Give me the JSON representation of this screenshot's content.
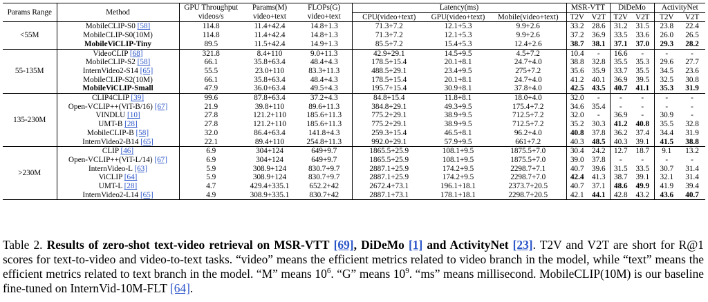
{
  "table": {
    "headers": {
      "params_range": "Params Range",
      "method": "Method",
      "gpu_throughput_l1": "GPU Throughput",
      "gpu_throughput_l2": "videos/s",
      "params_l1": "Params(M)",
      "params_l2": "video+text",
      "flops_l1": "FLOPs(G)",
      "flops_l2": "video+text",
      "latency": "Latency(ms)",
      "cpu": "CPU(video+text)",
      "gpu": "GPU(video+text)",
      "mobile": "Mobile(video+text)",
      "msrvtt": "MSR-VTT",
      "didemo": "DiDeMo",
      "activitynet": "ActivityNet",
      "t2v": "T2V",
      "v2t": "V2T"
    },
    "groups": [
      {
        "range": "<55M",
        "rows": [
          {
            "method": "MobileCLIP-S0",
            "ref": "[58]",
            "bold": false,
            "throughput": "114.8",
            "params": "11.4+42.4",
            "flops": "14.8+1.3",
            "cpu": "71.3+7.2",
            "gpu": "12.1+5.3",
            "mobile": "9.9+2.6",
            "msr_t2v": "33.2",
            "msr_v2t": "28.6",
            "did_t2v": "31.2",
            "did_v2t": "31.5",
            "act_t2v": "23.8",
            "act_v2t": "22.4",
            "bold_cells": []
          },
          {
            "method": "MobileCLIP-S0(10M)",
            "ref": "",
            "bold": false,
            "throughput": "114.8",
            "params": "11.4+42.4",
            "flops": "14.8+1.3",
            "cpu": "71.3+7.2",
            "gpu": "12.1+5.3",
            "mobile": "9.9+2.6",
            "msr_t2v": "37.2",
            "msr_v2t": "36.9",
            "did_t2v": "33.5",
            "did_v2t": "33.6",
            "act_t2v": "26.0",
            "act_v2t": "26.5",
            "bold_cells": []
          },
          {
            "method": "MobileViCLIP-Tiny",
            "ref": "",
            "bold": true,
            "throughput": "89.5",
            "params": "11.5+42.4",
            "flops": "14.9+1.3",
            "cpu": "85.5+7.2",
            "gpu": "15.4+5.3",
            "mobile": "12.4+2.6",
            "msr_t2v": "38.7",
            "msr_v2t": "38.1",
            "did_t2v": "37.1",
            "did_v2t": "37.0",
            "act_t2v": "29.3",
            "act_v2t": "28.2",
            "bold_cells": [
              "msr_t2v",
              "msr_v2t",
              "did_t2v",
              "did_v2t",
              "act_t2v",
              "act_v2t"
            ]
          }
        ]
      },
      {
        "range": "55-135M",
        "rows": [
          {
            "method": "VideoCLIP",
            "ref": "[68]",
            "bold": false,
            "throughput": "321.8",
            "params": "8.4+110",
            "flops": "9.0+11.3",
            "cpu": "42.9+29.1",
            "gpu": "14.5+9.5",
            "mobile": "4.5+7.2",
            "msr_t2v": "10.4",
            "msr_v2t": "-",
            "did_t2v": "16.6",
            "did_v2t": "-",
            "act_t2v": "-",
            "act_v2t": "-",
            "bold_cells": []
          },
          {
            "method": "MobileCLIP-S2",
            "ref": "[58]",
            "bold": false,
            "throughput": "66.1",
            "params": "35.8+63.4",
            "flops": "48.4+4.3",
            "cpu": "178.5+15.4",
            "gpu": "20.1+8.1",
            "mobile": "24.7+4.0",
            "msr_t2v": "38.8",
            "msr_v2t": "32.8",
            "did_t2v": "35.5",
            "did_v2t": "35.3",
            "act_t2v": "29.6",
            "act_v2t": "27.7",
            "bold_cells": []
          },
          {
            "method": "InternVideo2-S14",
            "ref": "[65]",
            "bold": false,
            "throughput": "55.5",
            "params": "23.0+110",
            "flops": "83.3+11.3",
            "cpu": "488.5+29.1",
            "gpu": "23.4+9.5",
            "mobile": "275+7.2",
            "msr_t2v": "35.6",
            "msr_v2t": "35.9",
            "did_t2v": "33.7",
            "did_v2t": "35.5",
            "act_t2v": "34.5",
            "act_v2t": "23.6",
            "bold_cells": []
          },
          {
            "method": "MobileCLIP-S2(10M)",
            "ref": "",
            "bold": false,
            "throughput": "66.1",
            "params": "35.8+63.4",
            "flops": "48.4+4.3",
            "cpu": "178.5+15.4",
            "gpu": "20.1+8.1",
            "mobile": "24.7+4.0",
            "msr_t2v": "41.2",
            "msr_v2t": "40.1",
            "did_t2v": "36.9",
            "did_v2t": "39.5",
            "act_t2v": "32.5",
            "act_v2t": "30.8",
            "bold_cells": []
          },
          {
            "method": "MobileViCLIP-Small",
            "ref": "",
            "bold": true,
            "throughput": "47.9",
            "params": "36.0+63.4",
            "flops": "49.5+4.3",
            "cpu": "195.7+15.4",
            "gpu": "30.9+8.1",
            "mobile": "37.8+4.0",
            "msr_t2v": "42.5",
            "msr_v2t": "43.5",
            "did_t2v": "40.7",
            "did_v2t": "41.1",
            "act_t2v": "35.3",
            "act_v2t": "31.9",
            "bold_cells": [
              "msr_t2v",
              "msr_v2t",
              "did_t2v",
              "did_v2t",
              "act_t2v",
              "act_v2t"
            ]
          }
        ]
      },
      {
        "range": "135-230M",
        "rows": [
          {
            "method": "CLIP4CLIP",
            "ref": "[39]",
            "bold": false,
            "throughput": "99.6",
            "params": "87.8+63.4",
            "flops": "37.2+4.3",
            "cpu": "84.8+15.4",
            "gpu": "11.8+8.1",
            "mobile": "18.0+4.0",
            "msr_t2v": "32.0",
            "msr_v2t": "-",
            "did_t2v": "-",
            "did_v2t": "-",
            "act_t2v": "-",
            "act_v2t": "-",
            "bold_cells": []
          },
          {
            "method": "Open-VCLIP++(ViT-B/16)",
            "ref": "[67]",
            "bold": false,
            "throughput": "21.9",
            "params": "39.8+110",
            "flops": "89.6+11.3",
            "cpu": "384.8+29.1",
            "gpu": "49.3+9.5",
            "mobile": "175.4+7.2",
            "msr_t2v": "34.6",
            "msr_v2t": "35.4",
            "did_t2v": "-",
            "did_v2t": "-",
            "act_t2v": "-",
            "act_v2t": "-",
            "bold_cells": []
          },
          {
            "method": "VINDLU",
            "ref": "[10]",
            "bold": false,
            "throughput": "27.8",
            "params": "121.2+110",
            "flops": "185.6+11.3",
            "cpu": "775.2+29.1",
            "gpu": "38.9+9.5",
            "mobile": "712.5+7.2",
            "msr_t2v": "32.0",
            "msr_v2t": "-",
            "did_t2v": "36.9",
            "did_v2t": "-",
            "act_t2v": "30.9",
            "act_v2t": "-",
            "bold_cells": []
          },
          {
            "method": "UMT-B",
            "ref": "[28]",
            "bold": false,
            "throughput": "27.8",
            "params": "121.2+110",
            "flops": "185.6+11.3",
            "cpu": "775.2+29.1",
            "gpu": "38.9+9.5",
            "mobile": "712.5+7.2",
            "msr_t2v": "35.2",
            "msr_v2t": "30.3",
            "did_t2v": "41.2",
            "did_v2t": "40.8",
            "act_t2v": "35.5",
            "act_v2t": "32.8",
            "bold_cells": [
              "did_t2v",
              "did_v2t"
            ]
          },
          {
            "method": "MobileCLIP-B",
            "ref": "[58]",
            "bold": false,
            "throughput": "32.0",
            "params": "86.4+63.4",
            "flops": "141.8+4.3",
            "cpu": "259.3+15.4",
            "gpu": "46.5+8.1",
            "mobile": "96.2+4.0",
            "msr_t2v": "40.8",
            "msr_v2t": "37.8",
            "did_t2v": "36.2",
            "did_v2t": "37.4",
            "act_t2v": "34.4",
            "act_v2t": "31.9",
            "bold_cells": [
              "msr_t2v"
            ]
          },
          {
            "method": "InternVideo2-B14",
            "ref": "[65]",
            "bold": false,
            "throughput": "22.1",
            "params": "89.4+110",
            "flops": "254.8+11.3",
            "cpu": "992.0+29.1",
            "gpu": "57.9+9.5",
            "mobile": "661+7.2",
            "msr_t2v": "40.3",
            "msr_v2t": "48.5",
            "did_t2v": "40.3",
            "did_v2t": "39.1",
            "act_t2v": "41.5",
            "act_v2t": "38.8",
            "bold_cells": [
              "msr_v2t",
              "act_t2v",
              "act_v2t"
            ]
          }
        ]
      },
      {
        "range": ">230M",
        "rows": [
          {
            "method": "CLIP",
            "ref": "[46]",
            "bold": false,
            "throughput": "6.9",
            "params": "304+124",
            "flops": "649+9.7",
            "cpu": "1865.5+25.9",
            "gpu": "108.1+9.5",
            "mobile": "1875.5+7.0",
            "msr_t2v": "30.4",
            "msr_v2t": "24.2",
            "did_t2v": "12.7",
            "did_v2t": "18.7",
            "act_t2v": "9.1",
            "act_v2t": "13.2",
            "bold_cells": []
          },
          {
            "method": "Open-VCLIP++(ViT-L/14)",
            "ref": "[67]",
            "bold": false,
            "throughput": "6.9",
            "params": "304+124",
            "flops": "649+9.7",
            "cpu": "1865.5+25.9",
            "gpu": "108.1+9.5",
            "mobile": "1875.5+7.0",
            "msr_t2v": "39.0",
            "msr_v2t": "37.8",
            "did_t2v": "-",
            "did_v2t": "-",
            "act_t2v": "-",
            "act_v2t": "-",
            "bold_cells": []
          },
          {
            "method": "InternVideo-L",
            "ref": "[63]",
            "bold": false,
            "throughput": "5.9",
            "params": "308.9+124",
            "flops": "830.7+9.7",
            "cpu": "2887.1+25.9",
            "gpu": "174.2+9.5",
            "mobile": "2298.7+7.1",
            "msr_t2v": "40.7",
            "msr_v2t": "39.6",
            "did_t2v": "31.5",
            "did_v2t": "33.5",
            "act_t2v": "30.7",
            "act_v2t": "31.4",
            "bold_cells": []
          },
          {
            "method": "ViCLIP",
            "ref": "[64]",
            "bold": false,
            "throughput": "5.9",
            "params": "308.9+124",
            "flops": "830.7+9.7",
            "cpu": "2887.1+25.9",
            "gpu": "174.2+9.5",
            "mobile": "2298.7+7.0",
            "msr_t2v": "42.4",
            "msr_v2t": "41.3",
            "did_t2v": "38.7",
            "did_v2t": "39.1",
            "act_t2v": "32.1",
            "act_v2t": "31.4",
            "bold_cells": [
              "msr_t2v"
            ]
          },
          {
            "method": "UMT-L",
            "ref": "[28]",
            "bold": false,
            "throughput": "4.7",
            "params": "429.4+335.1",
            "flops": "652.2+42",
            "cpu": "2672.4+73.1",
            "gpu": "196.1+18.1",
            "mobile": "2373.7+20.5",
            "msr_t2v": "40.7",
            "msr_v2t": "37.1",
            "did_t2v": "48.6",
            "did_v2t": "49.9",
            "act_t2v": "41.9",
            "act_v2t": "39.4",
            "bold_cells": [
              "did_t2v",
              "did_v2t"
            ]
          },
          {
            "method": "InternVideo2-L14",
            "ref": "[65]",
            "bold": false,
            "throughput": "4.9",
            "params": "308.9+335.1",
            "flops": "830.7+42",
            "cpu": "2887.1+73.1",
            "gpu": "178.1+18.1",
            "mobile": "2298.7+20.5",
            "msr_t2v": "42.1",
            "msr_v2t": "44.1",
            "did_t2v": "42.8",
            "did_v2t": "43.2",
            "act_t2v": "43.6",
            "act_v2t": "40.7",
            "bold_cells": [
              "msr_v2t",
              "act_t2v",
              "act_v2t"
            ]
          }
        ]
      }
    ]
  },
  "caption": {
    "label": "Table 2.",
    "bold_a": "Results of zero-shot text-video retrieval on MSR-VTT",
    "ref_a": "[69]",
    "bold_b": ", DiDeMo",
    "ref_b": "[1]",
    "bold_c": "and ActivityNet",
    "ref_c": "[23]",
    "text_a": ". T2V and V2T are short for R@1 scores for text-to-video and video-to-text tasks. “video” means the efficient metrics related to video branch in the model, while “text” means the efficient metrics related to text branch in the model. “M” means 10",
    "sup_a": "6",
    "text_b": ". “G” means 10",
    "sup_b": "9",
    "text_c": ". “ms” means millisecond. MobileCLIP(10M) is our baseline fine-tuned on InternVid-10M-FLT",
    "ref_d": "[64]",
    "text_d": "."
  }
}
